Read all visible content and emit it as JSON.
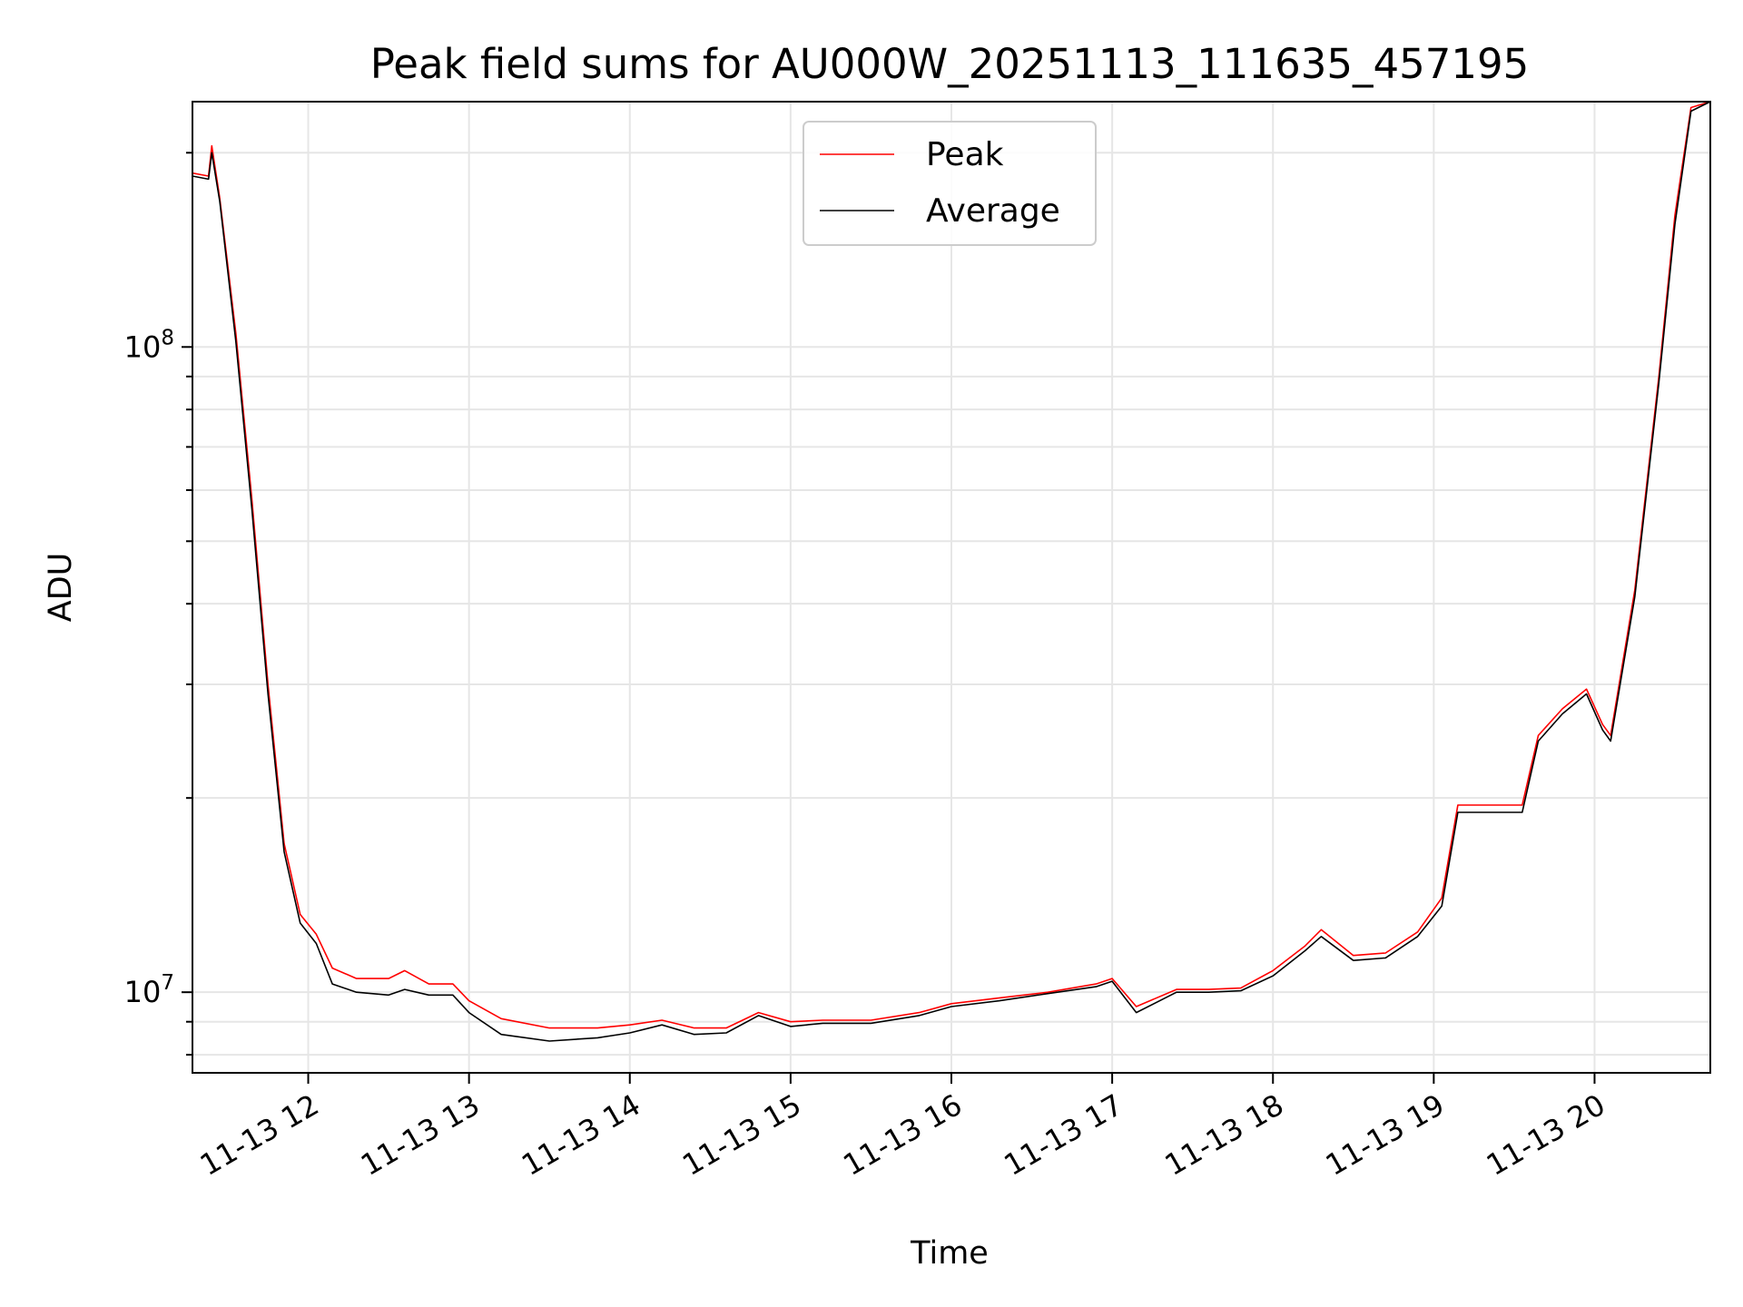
{
  "chart_data": {
    "type": "line",
    "title": "Peak field sums for AU000W_20251113_111635_457195",
    "xlabel": "Time",
    "ylabel": "ADU",
    "yscale": "log",
    "ylim": [
      7500000,
      240000000
    ],
    "xlim_hours": [
      11.28,
      20.72
    ],
    "grid": true,
    "legend_position": "top-center",
    "x_tick_labels": [
      "11-13 12",
      "11-13 13",
      "11-13 14",
      "11-13 15",
      "11-13 16",
      "11-13 17",
      "11-13 18",
      "11-13 19",
      "11-13 20"
    ],
    "x_tick_hours": [
      12,
      13,
      14,
      15,
      16,
      17,
      18,
      19,
      20
    ],
    "y_tick_labels": [
      {
        "base": "10",
        "exp": "7",
        "value": 10000000
      },
      {
        "base": "10",
        "exp": "8",
        "value": 100000000
      }
    ],
    "series": [
      {
        "name": "Peak",
        "color": "#ff0000",
        "points": [
          [
            11.28,
            186000000
          ],
          [
            11.38,
            184000000
          ],
          [
            11.4,
            205000000
          ],
          [
            11.45,
            170000000
          ],
          [
            11.55,
            105000000
          ],
          [
            11.65,
            58000000
          ],
          [
            11.75,
            30000000
          ],
          [
            11.85,
            17000000
          ],
          [
            11.95,
            13200000
          ],
          [
            12.05,
            12300000
          ],
          [
            12.15,
            10900000
          ],
          [
            12.3,
            10500000
          ],
          [
            12.5,
            10500000
          ],
          [
            12.6,
            10800000
          ],
          [
            12.75,
            10300000
          ],
          [
            12.9,
            10300000
          ],
          [
            13.0,
            9700000
          ],
          [
            13.2,
            9100000
          ],
          [
            13.5,
            8800000
          ],
          [
            13.8,
            8800000
          ],
          [
            14.0,
            8900000
          ],
          [
            14.2,
            9050000
          ],
          [
            14.4,
            8800000
          ],
          [
            14.6,
            8800000
          ],
          [
            14.8,
            9300000
          ],
          [
            15.0,
            9000000
          ],
          [
            15.2,
            9050000
          ],
          [
            15.5,
            9050000
          ],
          [
            15.8,
            9300000
          ],
          [
            16.0,
            9600000
          ],
          [
            16.3,
            9800000
          ],
          [
            16.6,
            10000000
          ],
          [
            16.9,
            10300000
          ],
          [
            17.0,
            10500000
          ],
          [
            17.15,
            9500000
          ],
          [
            17.4,
            10100000
          ],
          [
            17.6,
            10100000
          ],
          [
            17.8,
            10150000
          ],
          [
            18.0,
            10800000
          ],
          [
            18.2,
            11800000
          ],
          [
            18.3,
            12500000
          ],
          [
            18.5,
            11400000
          ],
          [
            18.7,
            11500000
          ],
          [
            18.9,
            12400000
          ],
          [
            19.05,
            14000000
          ],
          [
            19.15,
            19500000
          ],
          [
            19.3,
            19500000
          ],
          [
            19.55,
            19500000
          ],
          [
            19.65,
            25000000
          ],
          [
            19.8,
            27500000
          ],
          [
            19.95,
            29500000
          ],
          [
            20.05,
            26000000
          ],
          [
            20.1,
            25000000
          ],
          [
            20.25,
            42000000
          ],
          [
            20.4,
            90000000
          ],
          [
            20.5,
            160000000
          ],
          [
            20.6,
            235000000
          ],
          [
            20.72,
            240000000
          ]
        ]
      },
      {
        "name": "Average",
        "color": "#000000",
        "points": [
          [
            11.28,
            184000000
          ],
          [
            11.38,
            182000000
          ],
          [
            11.4,
            200000000
          ],
          [
            11.45,
            168000000
          ],
          [
            11.55,
            102000000
          ],
          [
            11.65,
            56000000
          ],
          [
            11.75,
            29000000
          ],
          [
            11.85,
            16500000
          ],
          [
            11.95,
            12800000
          ],
          [
            12.05,
            11900000
          ],
          [
            12.15,
            10300000
          ],
          [
            12.3,
            10000000
          ],
          [
            12.5,
            9900000
          ],
          [
            12.6,
            10100000
          ],
          [
            12.75,
            9900000
          ],
          [
            12.9,
            9900000
          ],
          [
            13.0,
            9300000
          ],
          [
            13.2,
            8600000
          ],
          [
            13.5,
            8400000
          ],
          [
            13.8,
            8500000
          ],
          [
            14.0,
            8650000
          ],
          [
            14.2,
            8900000
          ],
          [
            14.4,
            8600000
          ],
          [
            14.6,
            8650000
          ],
          [
            14.8,
            9200000
          ],
          [
            15.0,
            8850000
          ],
          [
            15.2,
            8950000
          ],
          [
            15.5,
            8950000
          ],
          [
            15.8,
            9200000
          ],
          [
            16.0,
            9500000
          ],
          [
            16.3,
            9700000
          ],
          [
            16.6,
            9950000
          ],
          [
            16.9,
            10200000
          ],
          [
            17.0,
            10400000
          ],
          [
            17.15,
            9300000
          ],
          [
            17.4,
            10000000
          ],
          [
            17.6,
            10000000
          ],
          [
            17.8,
            10050000
          ],
          [
            18.0,
            10600000
          ],
          [
            18.2,
            11600000
          ],
          [
            18.3,
            12200000
          ],
          [
            18.5,
            11200000
          ],
          [
            18.7,
            11300000
          ],
          [
            18.9,
            12200000
          ],
          [
            19.05,
            13600000
          ],
          [
            19.15,
            19000000
          ],
          [
            19.3,
            19000000
          ],
          [
            19.55,
            19000000
          ],
          [
            19.65,
            24500000
          ],
          [
            19.8,
            27000000
          ],
          [
            19.95,
            29000000
          ],
          [
            20.05,
            25500000
          ],
          [
            20.1,
            24500000
          ],
          [
            20.25,
            41000000
          ],
          [
            20.4,
            88000000
          ],
          [
            20.5,
            155000000
          ],
          [
            20.6,
            232000000
          ],
          [
            20.72,
            240000000
          ]
        ]
      }
    ]
  }
}
